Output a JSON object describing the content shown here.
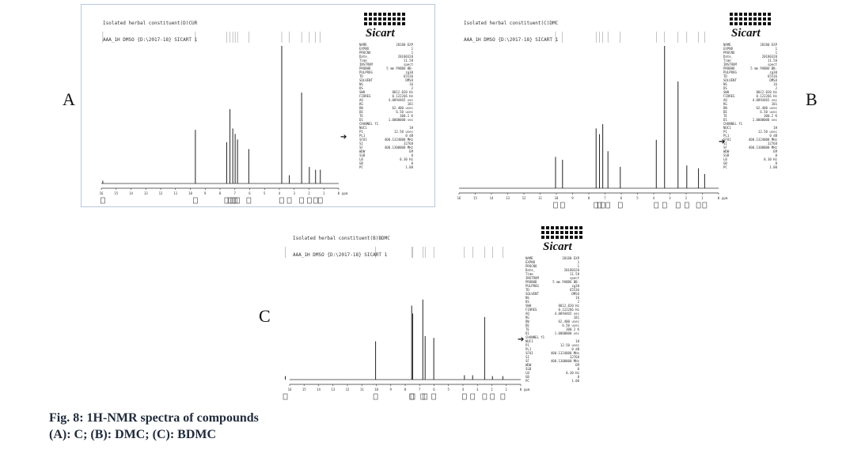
{
  "figure": {
    "caption_line1": "Fig. 8: 1H-NMR spectra of compounds",
    "caption_line2": "(A): C; (B): DMC; (C): BDMC"
  },
  "logo_text": "Sicart",
  "panels": [
    {
      "letter": "A",
      "header_line1": "Isolated herbal constituent(D)CUR",
      "header_line2": "AAA_1H DMSO {D:\\2017-18} SICART 1",
      "ppm_ticks": [
        "16",
        "15",
        "14",
        "13",
        "12",
        "11",
        "10",
        "9",
        "8",
        "7",
        "6",
        "5",
        "4",
        "3",
        "2",
        "1",
        "0",
        "ppm"
      ],
      "params": [
        [
          "NAME",
          "20180 EXP"
        ],
        [
          "EXPNO",
          "1"
        ],
        [
          "PROCNO",
          "1"
        ],
        [
          "Date_",
          "20180320"
        ],
        [
          "Time",
          "11.58"
        ],
        [
          "INSTRUM",
          "spect"
        ],
        [
          "PROBHD",
          "5 mm PABBO BB-"
        ],
        [
          "PULPROG",
          "zg30"
        ],
        [
          "TD",
          "65536"
        ],
        [
          "SOLVENT",
          "DMSO"
        ],
        [
          "NS",
          "16"
        ],
        [
          "DS",
          "2"
        ],
        [
          "SWH",
          "8012.820 Hz"
        ],
        [
          "FIDRES",
          "0.122266 Hz"
        ],
        [
          "AQ",
          "4.0894465 sec"
        ],
        [
          "RG",
          "181"
        ],
        [
          "DW",
          "62.400 usec"
        ],
        [
          "DE",
          "6.50 usec"
        ],
        [
          "TE",
          "300.2 K"
        ],
        [
          "D1",
          "1.0000000 sec"
        ],
        [
          "CHANNEL f1",
          ""
        ],
        [
          "NUC1",
          "1H"
        ],
        [
          "P1",
          "12.50 usec"
        ],
        [
          "PL1",
          "0 dB"
        ],
        [
          "SFO1",
          "400.1324008 MHz"
        ],
        [
          "SI",
          "32768"
        ],
        [
          "SF",
          "400.1300000 MHz"
        ],
        [
          "WDW",
          "EM"
        ],
        [
          "SSB",
          "0"
        ],
        [
          "LB",
          "0.30 Hz"
        ],
        [
          "GB",
          "0"
        ],
        [
          "PC",
          "1.00"
        ]
      ]
    },
    {
      "letter": "B",
      "header_line1": "Isolated herbal constituent(C)DMC",
      "header_line2": "AAA_1H DMSO {D:\\2017-18} SICART 1",
      "ppm_ticks": [
        "16",
        "15",
        "14",
        "13",
        "12",
        "11",
        "10",
        "9",
        "8",
        "7",
        "6",
        "5",
        "4",
        "3",
        "2",
        "1",
        "0",
        "ppm"
      ],
      "params": [
        [
          "NAME",
          "20180 EXP"
        ],
        [
          "EXPNO",
          "1"
        ],
        [
          "PROCNO",
          "1"
        ],
        [
          "Date_",
          "20180320"
        ],
        [
          "Time",
          "11.58"
        ],
        [
          "INSTRUM",
          "spect"
        ],
        [
          "PROBHD",
          "5 mm PABBO BB-"
        ],
        [
          "PULPROG",
          "zg30"
        ],
        [
          "TD",
          "65536"
        ],
        [
          "SOLVENT",
          "DMSO"
        ],
        [
          "NS",
          "16"
        ],
        [
          "DS",
          "2"
        ],
        [
          "SWH",
          "8012.820 Hz"
        ],
        [
          "FIDRES",
          "0.122266 Hz"
        ],
        [
          "AQ",
          "4.0894465 sec"
        ],
        [
          "RG",
          "181"
        ],
        [
          "DW",
          "62.400 usec"
        ],
        [
          "DE",
          "6.50 usec"
        ],
        [
          "TE",
          "300.2 K"
        ],
        [
          "D1",
          "1.0000000 sec"
        ],
        [
          "CHANNEL f1",
          ""
        ],
        [
          "NUC1",
          "1H"
        ],
        [
          "P1",
          "12.50 usec"
        ],
        [
          "PL1",
          "0 dB"
        ],
        [
          "SFO1",
          "400.1324008 MHz"
        ],
        [
          "SI",
          "32768"
        ],
        [
          "SF",
          "400.1300000 MHz"
        ],
        [
          "WDW",
          "EM"
        ],
        [
          "SSB",
          "0"
        ],
        [
          "LB",
          "0.30 Hz"
        ],
        [
          "GB",
          "0"
        ],
        [
          "PC",
          "1.00"
        ]
      ]
    },
    {
      "letter": "C",
      "header_line1": "Isolated herbal constituent(B)BDMC",
      "header_line2": "AAA_1H DMSO {D:\\2017-18} SICART 1",
      "ppm_ticks": [
        "16",
        "15",
        "14",
        "13",
        "12",
        "11",
        "10",
        "9",
        "8",
        "7",
        "6",
        "5",
        "4",
        "3",
        "2",
        "1",
        "0",
        "ppm"
      ],
      "params": [
        [
          "NAME",
          "20180 EXP"
        ],
        [
          "EXPNO",
          "1"
        ],
        [
          "PROCNO",
          "1"
        ],
        [
          "Date_",
          "20180320"
        ],
        [
          "Time",
          "11.58"
        ],
        [
          "INSTRUM",
          "spect"
        ],
        [
          "PROBHD",
          "5 mm PABBO BB-"
        ],
        [
          "PULPROG",
          "zg30"
        ],
        [
          "TD",
          "65536"
        ],
        [
          "SOLVENT",
          "DMSO"
        ],
        [
          "NS",
          "16"
        ],
        [
          "DS",
          "2"
        ],
        [
          "SWH",
          "8012.820 Hz"
        ],
        [
          "FIDRES",
          "0.122266 Hz"
        ],
        [
          "AQ",
          "4.0894465 sec"
        ],
        [
          "RG",
          "181"
        ],
        [
          "DW",
          "62.400 usec"
        ],
        [
          "DE",
          "6.50 usec"
        ],
        [
          "TE",
          "300.2 K"
        ],
        [
          "D1",
          "1.0000000 sec"
        ],
        [
          "CHANNEL f1",
          ""
        ],
        [
          "NUC1",
          "1H"
        ],
        [
          "P1",
          "12.50 usec"
        ],
        [
          "PL1",
          "0 dB"
        ],
        [
          "SFO1",
          "400.1324008 MHz"
        ],
        [
          "SI",
          "32768"
        ],
        [
          "SF",
          "400.1300000 MHz"
        ],
        [
          "WDW",
          "EM"
        ],
        [
          "SSB",
          "0"
        ],
        [
          "LB",
          "0.30 Hz"
        ],
        [
          "GB",
          "0"
        ],
        [
          "PC",
          "1.00"
        ]
      ]
    }
  ],
  "chart_data": [
    {
      "type": "line",
      "title": "Isolated herbal constituent(D)CUR",
      "xlabel": "ppm",
      "xlim": [
        16,
        0
      ],
      "x_reversed": true,
      "peaks": [
        {
          "ppm": 15.9,
          "intensity": 0.02
        },
        {
          "ppm": 9.66,
          "intensity": 0.39
        },
        {
          "ppm": 7.55,
          "intensity": 0.3
        },
        {
          "ppm": 7.33,
          "intensity": 0.54
        },
        {
          "ppm": 7.14,
          "intensity": 0.4
        },
        {
          "ppm": 6.98,
          "intensity": 0.36
        },
        {
          "ppm": 6.82,
          "intensity": 0.32
        },
        {
          "ppm": 6.06,
          "intensity": 0.25
        },
        {
          "ppm": 3.84,
          "intensity": 1.0
        },
        {
          "ppm": 3.33,
          "intensity": 0.06
        },
        {
          "ppm": 2.5,
          "intensity": 0.66
        },
        {
          "ppm": 1.98,
          "intensity": 0.12
        },
        {
          "ppm": 1.56,
          "intensity": 0.1
        },
        {
          "ppm": 1.24,
          "intensity": 0.1
        }
      ]
    },
    {
      "type": "line",
      "title": "Isolated herbal constituent(C)DMC",
      "xlabel": "ppm",
      "xlim": [
        16,
        0
      ],
      "x_reversed": true,
      "peaks": [
        {
          "ppm": 10.05,
          "intensity": 0.22
        },
        {
          "ppm": 9.62,
          "intensity": 0.2
        },
        {
          "ppm": 7.55,
          "intensity": 0.42
        },
        {
          "ppm": 7.34,
          "intensity": 0.38
        },
        {
          "ppm": 7.14,
          "intensity": 0.45
        },
        {
          "ppm": 6.82,
          "intensity": 0.26
        },
        {
          "ppm": 6.06,
          "intensity": 0.15
        },
        {
          "ppm": 3.84,
          "intensity": 0.34
        },
        {
          "ppm": 3.33,
          "intensity": 1.0
        },
        {
          "ppm": 2.5,
          "intensity": 0.75
        },
        {
          "ppm": 1.96,
          "intensity": 0.16
        },
        {
          "ppm": 1.24,
          "intensity": 0.14
        },
        {
          "ppm": 0.86,
          "intensity": 0.1
        }
      ]
    },
    {
      "type": "line",
      "title": "Isolated herbal constituent(B)BDMC",
      "xlabel": "ppm",
      "xlim": [
        16,
        0
      ],
      "x_reversed": true,
      "peaks": [
        {
          "ppm": 16.3,
          "intensity": 0.04
        },
        {
          "ppm": 10.05,
          "intensity": 0.44
        },
        {
          "ppm": 7.55,
          "intensity": 0.85
        },
        {
          "ppm": 7.48,
          "intensity": 0.76
        },
        {
          "ppm": 6.78,
          "intensity": 0.92
        },
        {
          "ppm": 6.62,
          "intensity": 0.5
        },
        {
          "ppm": 6.02,
          "intensity": 0.48
        },
        {
          "ppm": 3.9,
          "intensity": 0.05
        },
        {
          "ppm": 3.33,
          "intensity": 0.05
        },
        {
          "ppm": 2.5,
          "intensity": 0.72
        },
        {
          "ppm": 1.96,
          "intensity": 0.04
        },
        {
          "ppm": 1.24,
          "intensity": 0.04
        }
      ]
    }
  ]
}
